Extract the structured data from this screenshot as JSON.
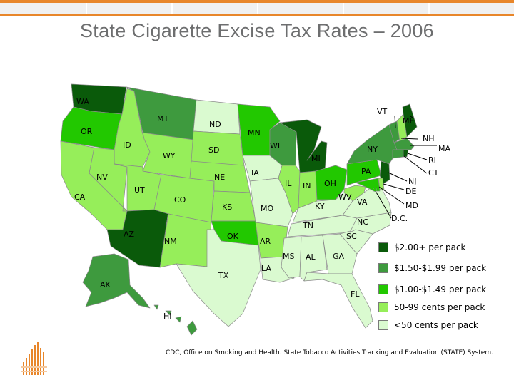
{
  "header": {
    "title": "State Cigarette Excise Tax Rates – 2006"
  },
  "map": {
    "state_labels": {
      "WA": "WA",
      "OR": "OR",
      "CA": "CA",
      "ID": "ID",
      "NV": "NV",
      "MT": "MT",
      "WY": "WY",
      "UT": "UT",
      "AZ": "AZ",
      "CO": "CO",
      "NM": "NM",
      "ND": "ND",
      "SD": "SD",
      "NE": "NE",
      "KS": "KS",
      "OK": "OK",
      "TX": "TX",
      "MN": "MN",
      "IA": "IA",
      "MO": "MO",
      "AR": "AR",
      "LA": "LA",
      "WI": "WI",
      "IL": "IL",
      "MI": "MI",
      "IN": "IN",
      "OH": "OH",
      "KY": "KY",
      "TN": "TN",
      "MS": "MS",
      "AL": "AL",
      "GA": "GA",
      "FL": "FL",
      "SC": "SC",
      "NC": "NC",
      "VA": "VA",
      "WV": "WV",
      "PA": "PA",
      "NY": "NY",
      "VT": "VT",
      "ME": "ME",
      "NH": "NH",
      "MA": "MA",
      "RI": "RI",
      "CT": "CT",
      "NJ": "NJ",
      "DE": "DE",
      "MD": "MD",
      "DC": "D.C.",
      "AK": "AK",
      "HI": "HI"
    },
    "state_tiers": {
      "WA": "t1",
      "OR": "t3",
      "CA": "t4",
      "ID": "t4",
      "NV": "t4",
      "MT": "t2",
      "WY": "t4",
      "UT": "t4",
      "AZ": "t1",
      "CO": "t4",
      "NM": "t4",
      "ND": "t5",
      "SD": "t4",
      "NE": "t4",
      "KS": "t4",
      "OK": "t3",
      "TX": "t5",
      "MN": "t3",
      "IA": "t5",
      "MO": "t5",
      "AR": "t4",
      "LA": "t5",
      "WI": "t2",
      "IL": "t4",
      "MI": "t1",
      "IN": "t4",
      "OH": "t3",
      "KY": "t5",
      "TN": "t5",
      "MS": "t5",
      "AL": "t5",
      "GA": "t5",
      "FL": "t5",
      "SC": "t5",
      "NC": "t5",
      "VA": "t5",
      "WV": "t4",
      "PA": "t3",
      "NY": "t2",
      "VT": "t2",
      "ME": "t1",
      "NH": "t4",
      "MA": "t2",
      "RI": "t1",
      "CT": "t2",
      "NJ": "t1",
      "DE": "t4",
      "MD": "t3",
      "DC": "t3",
      "AK": "t2",
      "HI": "t2"
    }
  },
  "legend": {
    "items": [
      {
        "label": "$2.00+ per pack",
        "color": "#0a5a0a"
      },
      {
        "label": "$1.50-$1.99 per pack",
        "color": "#3e9a3e"
      },
      {
        "label": "$1.00-$1.49 per pack",
        "color": "#22c800"
      },
      {
        "label": "50-99 cents per pack",
        "color": "#96ee5a"
      },
      {
        "label": "<50 cents per pack",
        "color": "#dafad0"
      }
    ]
  },
  "colors": {
    "accent": "#e8862a",
    "t1": "#0a5a0a",
    "t2": "#3e9a3e",
    "t3": "#22c800",
    "t4": "#96ee5a",
    "t5": "#dafad0",
    "border": "#8a8a8a"
  },
  "footer": {
    "source": "CDC, Office on Smoking and Health. State Tobacco Activities Tracking and Evaluation (STATE) System."
  }
}
